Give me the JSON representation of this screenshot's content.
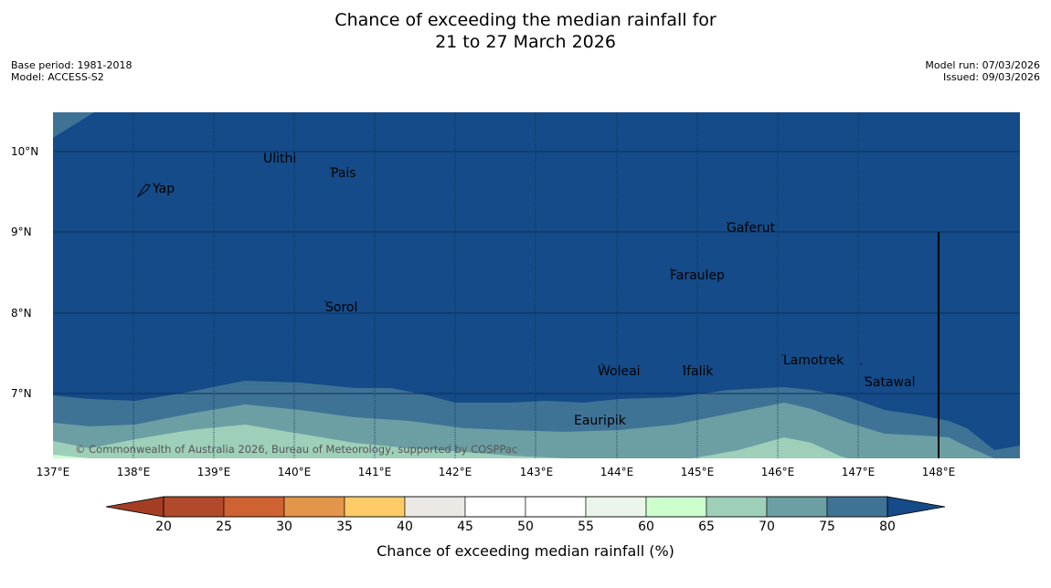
{
  "title": {
    "line1": "Chance of exceeding the median rainfall for",
    "line2": "21 to 27 March 2026"
  },
  "meta": {
    "base_period": "Base period: 1981-2018",
    "model": "Model: ACCESS-S2",
    "model_run": "Model run: 07/03/2026",
    "issued": "Issued: 09/03/2026"
  },
  "axes": {
    "lat_labels": [
      "10°N",
      "9°N",
      "8°N",
      "7°N"
    ],
    "lon_labels": [
      "137°E",
      "138°E",
      "139°E",
      "140°E",
      "141°E",
      "142°E",
      "143°E",
      "144°E",
      "145°E",
      "146°E",
      "147°E",
      "148°E"
    ]
  },
  "places": [
    {
      "name": "Ulithi"
    },
    {
      "name": "Pais"
    },
    {
      "name": "Yap"
    },
    {
      "name": "Gaferut"
    },
    {
      "name": "Faraulep"
    },
    {
      "name": "Sorol"
    },
    {
      "name": "Lamotrek"
    },
    {
      "name": "Woleai"
    },
    {
      "name": "Ifalik"
    },
    {
      "name": "Satawal"
    },
    {
      "name": "Eauripik"
    }
  ],
  "copyright": "© Commonwealth of Australia 2026, Bureau of Meteorology, supported by COSPPac",
  "colorbar": {
    "ticks": [
      "20",
      "25",
      "30",
      "35",
      "40",
      "45",
      "50",
      "55",
      "60",
      "65",
      "70",
      "75",
      "80"
    ],
    "colors": [
      "#b04a2a",
      "#ce6232",
      "#e3954a",
      "#fecc66",
      "#ece9e4",
      "#ffffff",
      "#ffffff",
      "#ecf5eb",
      "#ccffcc",
      "#9ecfb9",
      "#6c9fa4",
      "#3f7396"
    ],
    "under_color": "#a33e24",
    "over_color": "#144b88",
    "label": "Chance of exceeding median rainfall (%)"
  }
}
